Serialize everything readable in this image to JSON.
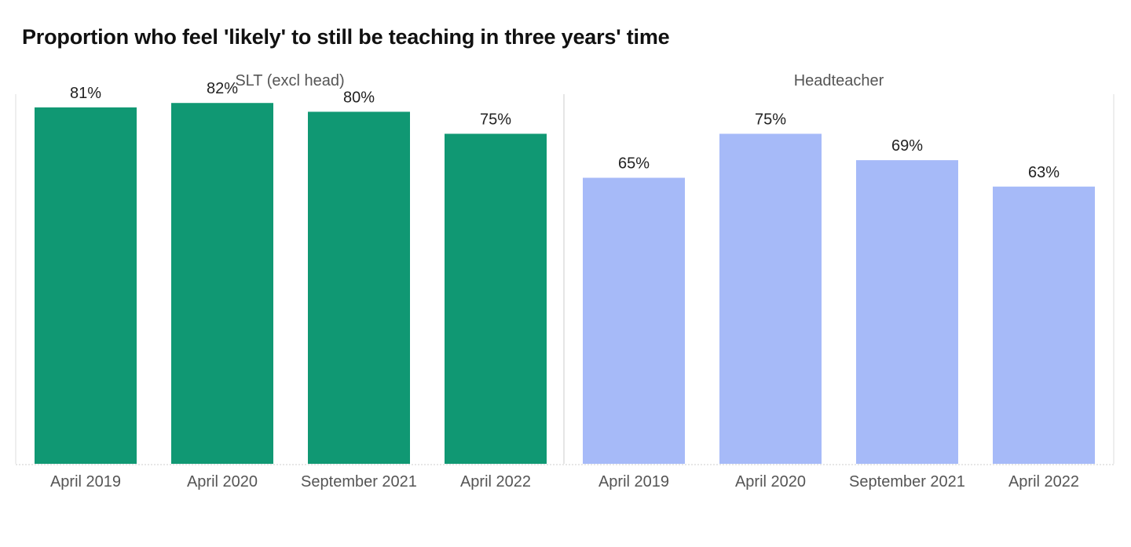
{
  "title": "Proportion who feel 'likely' to still be teaching in three years' time",
  "colors": {
    "slt": "#109873",
    "head": "#a6baf8",
    "divider": "#dddddd",
    "baseline": "#cccccc"
  },
  "chart_data": [
    {
      "type": "bar",
      "title": "SLT (excl head)",
      "categories": [
        "April 2019",
        "April 2020",
        "September 2021",
        "April 2022"
      ],
      "values": [
        81,
        82,
        80,
        75
      ],
      "value_labels": [
        "81%",
        "82%",
        "80%",
        "75%"
      ],
      "ylim": [
        0,
        84
      ],
      "color": "#109873"
    },
    {
      "type": "bar",
      "title": "Headteacher",
      "categories": [
        "April 2019",
        "April 2020",
        "September 2021",
        "April 2022"
      ],
      "values": [
        65,
        75,
        69,
        63
      ],
      "value_labels": [
        "65%",
        "75%",
        "69%",
        "63%"
      ],
      "ylim": [
        0,
        84
      ],
      "color": "#a6baf8"
    }
  ]
}
